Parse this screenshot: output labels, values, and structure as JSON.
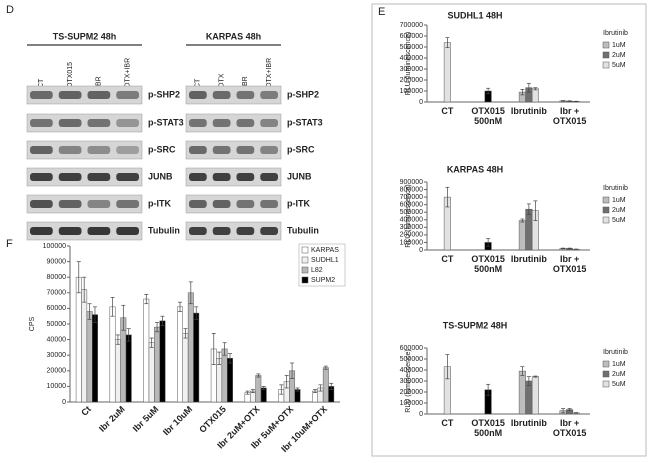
{
  "panels": {
    "d": "D",
    "e": "E",
    "f": "F"
  },
  "blots": [
    {
      "title": "TS-SUPM2 48h",
      "lanes": [
        "CT",
        "OTX015",
        "IBR",
        "OTX+IBR"
      ],
      "rows": [
        "p-SHP2",
        "p-STAT3",
        "p-SRC",
        "JUNB",
        "p-ITK",
        "Tubulin"
      ]
    },
    {
      "title": "KARPAS 48h",
      "lanes": [
        "CT",
        "OTX",
        "IBR",
        "OTX+IBR"
      ],
      "rows": [
        "p-SHP2",
        "p-STAT3",
        "p-SRC",
        "JUNB",
        "p-ITK",
        "Tubulin"
      ]
    }
  ],
  "chart_data": [
    {
      "type": "bar",
      "title": "SUDHL1 48H",
      "y_label": "RLU (luminescence)",
      "legend_title": "Ibrutinib",
      "categories": [
        [
          "CT"
        ],
        [
          "OTX015",
          "500nM"
        ],
        [
          "Ibrutinib"
        ],
        [
          "Ibr +",
          "OTX015"
        ]
      ],
      "ylim": [
        0,
        700000
      ],
      "yticks": [
        0,
        100000,
        200000,
        300000,
        400000,
        500000,
        600000,
        700000
      ],
      "series": [
        {
          "color": "#e2e2e2",
          "values": [
            540000,
            null,
            null,
            null
          ],
          "errors": [
            45000,
            null,
            null,
            null
          ]
        },
        {
          "color": "#000000",
          "values": [
            null,
            100000,
            null,
            null
          ],
          "errors": [
            null,
            25000,
            null,
            null
          ]
        },
        {
          "name": "1uM",
          "color": "#bdbdbd",
          "values": [
            null,
            null,
            90000,
            10000
          ],
          "errors": [
            null,
            null,
            25000,
            3000
          ]
        },
        {
          "name": "2uM",
          "color": "#707070",
          "values": [
            null,
            null,
            130000,
            8000
          ],
          "errors": [
            null,
            null,
            40000,
            3000
          ]
        },
        {
          "name": "5uM",
          "color": "#e2e2e2",
          "values": [
            null,
            null,
            120000,
            5000
          ],
          "errors": [
            null,
            null,
            10000,
            2000
          ]
        }
      ]
    },
    {
      "type": "bar",
      "title": "KARPAS 48H",
      "y_label": "RLU (luminescence)",
      "legend_title": "Ibrutinib",
      "categories": [
        [
          "CT"
        ],
        [
          "OTX015",
          "500nM"
        ],
        [
          "Ibrutinib"
        ],
        [
          "Ibr +",
          "OTX015"
        ]
      ],
      "ylim": [
        0,
        900000
      ],
      "yticks": [
        0,
        100000,
        200000,
        300000,
        400000,
        500000,
        600000,
        700000,
        800000,
        900000
      ],
      "series": [
        {
          "color": "#e2e2e2",
          "values": [
            700000,
            null,
            null,
            null
          ],
          "errors": [
            130000,
            null,
            null,
            null
          ]
        },
        {
          "color": "#000000",
          "values": [
            null,
            100000,
            null,
            null
          ],
          "errors": [
            null,
            50000,
            null,
            null
          ]
        },
        {
          "name": "1uM",
          "color": "#bdbdbd",
          "values": [
            null,
            null,
            390000,
            20000
          ],
          "errors": [
            null,
            null,
            20000,
            5000
          ]
        },
        {
          "name": "2uM",
          "color": "#707070",
          "values": [
            null,
            null,
            540000,
            20000
          ],
          "errors": [
            null,
            null,
            70000,
            5000
          ]
        },
        {
          "name": "5uM",
          "color": "#e2e2e2",
          "values": [
            null,
            null,
            520000,
            10000
          ],
          "errors": [
            null,
            null,
            130000,
            3000
          ]
        }
      ]
    },
    {
      "type": "bar",
      "title": "TS-SUPM2 48H",
      "y_label": "RLU (luminescence)",
      "legend_title": "Ibrutinib",
      "categories": [
        [
          "CT"
        ],
        [
          "OTX015",
          "500nM"
        ],
        [
          "Ibrutinib"
        ],
        [
          "Ibr +",
          "OTX015"
        ]
      ],
      "ylim": [
        0,
        600000
      ],
      "yticks": [
        0,
        100000,
        200000,
        300000,
        400000,
        500000,
        600000
      ],
      "series": [
        {
          "color": "#e2e2e2",
          "values": [
            430000,
            null,
            null,
            null
          ],
          "errors": [
            110000,
            null,
            null,
            null
          ]
        },
        {
          "color": "#000000",
          "values": [
            null,
            220000,
            null,
            null
          ],
          "errors": [
            null,
            50000,
            null,
            null
          ]
        },
        {
          "name": "1uM",
          "color": "#bdbdbd",
          "values": [
            null,
            null,
            390000,
            30000
          ],
          "errors": [
            null,
            null,
            40000,
            20000
          ]
        },
        {
          "name": "2uM",
          "color": "#707070",
          "values": [
            null,
            null,
            300000,
            40000
          ],
          "errors": [
            null,
            null,
            40000,
            10000
          ]
        },
        {
          "name": "5uM",
          "color": "#e2e2e2",
          "values": [
            null,
            null,
            340000,
            10000
          ],
          "errors": [
            null,
            null,
            5000,
            3000
          ]
        }
      ]
    },
    {
      "type": "bar",
      "y_label": "CPS",
      "categories": [
        "Ct",
        "Ibr 2uM",
        "Ibr 5uM",
        "Ibr 10uM",
        "OTX015",
        "Ibr 2uM+OTX",
        "Ibr 5uM+OTX",
        "Ibr 10uM+OTX"
      ],
      "ylim": [
        0,
        100000
      ],
      "yticks": [
        0,
        10000,
        20000,
        30000,
        40000,
        50000,
        60000,
        70000,
        80000,
        90000,
        100000
      ],
      "series": [
        {
          "name": "KARPAS",
          "color": "#ffffff",
          "values": [
            80000,
            61000,
            66000,
            61000,
            34000,
            6000,
            8000,
            7000
          ],
          "errors": [
            10000,
            6000,
            3000,
            3000,
            10000,
            1000,
            3000,
            1000
          ]
        },
        {
          "name": "SUDHL1",
          "color": "#f0f0f0",
          "values": [
            72000,
            40000,
            38000,
            44000,
            28000,
            7000,
            13000,
            9000
          ],
          "errors": [
            8000,
            3000,
            3000,
            3000,
            4000,
            1000,
            4000,
            2000
          ]
        },
        {
          "name": "L82",
          "color": "#b8b8b8",
          "values": [
            58000,
            54000,
            48000,
            70000,
            34000,
            17000,
            20000,
            22000
          ],
          "errors": [
            5000,
            8000,
            3000,
            7000,
            4000,
            1000,
            5000,
            1000
          ]
        },
        {
          "name": "SUPM2",
          "color": "#000000",
          "values": [
            56000,
            43000,
            52000,
            57000,
            28000,
            9000,
            8000,
            10000
          ],
          "errors": [
            5000,
            4000,
            3000,
            4000,
            3000,
            1000,
            1000,
            2000
          ]
        }
      ]
    }
  ]
}
